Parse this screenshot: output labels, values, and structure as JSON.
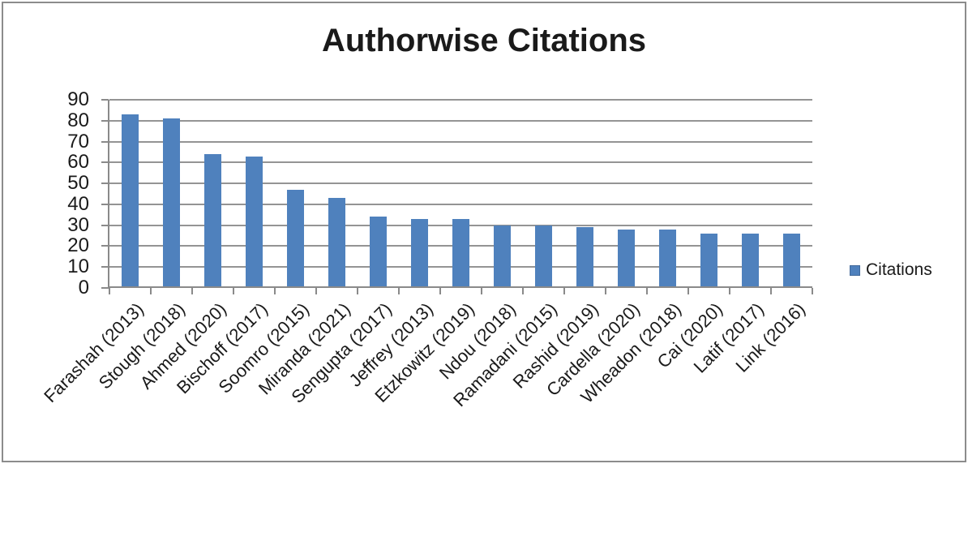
{
  "chart_data": {
    "type": "bar",
    "title": "Authorwise Citations",
    "categories": [
      "Farashah (2013)",
      "Stough (2018)",
      "Ahmed (2020)",
      "Bischoff (2017)",
      "Soomro (2015)",
      "Miranda (2021)",
      "Sengupta (2017)",
      "Jeffrey (2013)",
      "Etzkowitz (2019)",
      "Ndou (2018)",
      "Ramadani (2015)",
      "Rashid (2019)",
      "Cardella (2020)",
      "Wheadon (2018)",
      "Cai (2020)",
      "Latif (2017)",
      "Link (2016)"
    ],
    "series": [
      {
        "name": "Citations",
        "values": [
          83,
          81,
          64,
          63,
          47,
          43,
          34,
          33,
          33,
          30,
          30,
          29,
          28,
          28,
          26,
          26,
          26
        ]
      }
    ],
    "xlabel": "",
    "ylabel": "",
    "ylim": [
      0,
      90
    ],
    "yticks": [
      0,
      10,
      20,
      30,
      40,
      50,
      60,
      70,
      80,
      90
    ],
    "grid": "horizontal",
    "legend_position": "right",
    "bar_color": "#4F81BD",
    "gridline_color": "#949494",
    "axis_color": "#8a8a8a",
    "text_color": "#1a1a1a",
    "frame_border_color": "#8c8c8c"
  }
}
